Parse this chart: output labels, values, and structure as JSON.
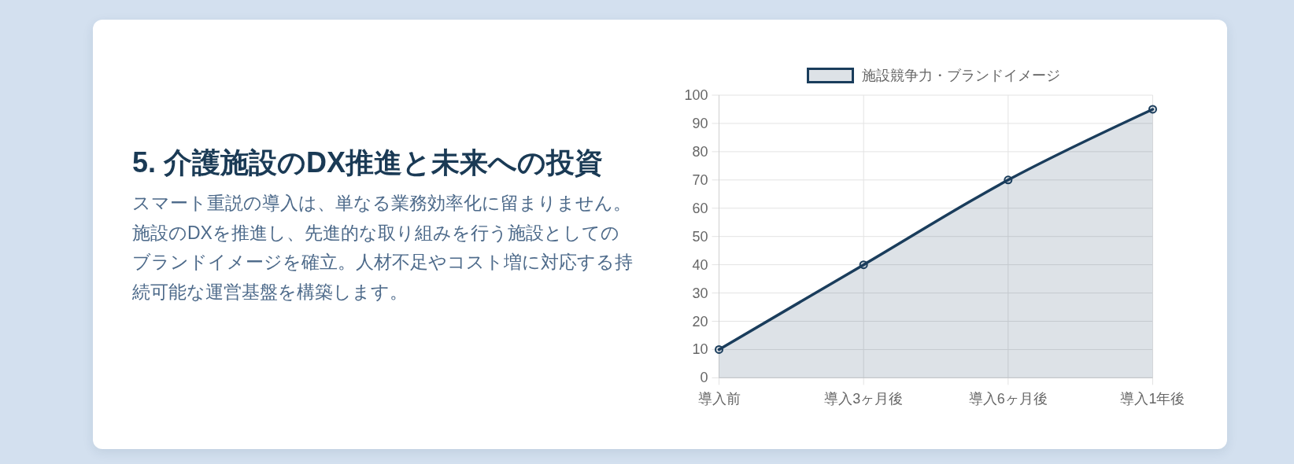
{
  "chart_data": {
    "type": "area",
    "title": "5. 介護施設のDX推進と未来への投資",
    "subtitle": "スマート重説の導入は、単なる業務効率化に留まりません。施設のDXを推進し、先進的な取り組みを行う施設としてのブランドイメージを確立。人材不足やコスト増に対応する持続可能な運営基盤を構築します。",
    "categories": [
      "導入前",
      "導入3ヶ月後",
      "導入6ヶ月後",
      "導入1年後"
    ],
    "series": [
      {
        "name": "施設競争力・ブランドイメージ",
        "color": "#1a3d5c",
        "values": [
          10,
          40,
          70,
          95
        ]
      }
    ],
    "ylim": [
      0,
      100
    ],
    "yticks": [
      0,
      10,
      20,
      30,
      40,
      50,
      60,
      70,
      80,
      90,
      100
    ],
    "grid": true,
    "legend": "top",
    "marker": "circle"
  }
}
